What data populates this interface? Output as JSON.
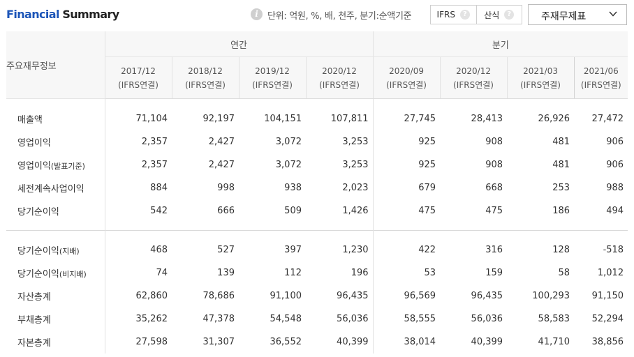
{
  "header": {
    "title_part1": "Financial",
    "title_part2": "Summary",
    "unit_text": "단위: 억원, %, 배, 천주, 분기:순액기준",
    "toggle": {
      "ifrs_label": "IFRS",
      "calc_label": "산식",
      "help_glyph": "?"
    },
    "select": {
      "label": "주재무제표"
    }
  },
  "table": {
    "corner_label": "주요재무정보",
    "groups": {
      "annual": "연간",
      "quarter": "분기"
    },
    "periods": [
      {
        "date": "2017/12",
        "basis": "(IFRS연결)"
      },
      {
        "date": "2018/12",
        "basis": "(IFRS연결)"
      },
      {
        "date": "2019/12",
        "basis": "(IFRS연결)"
      },
      {
        "date": "2020/12",
        "basis": "(IFRS연결)"
      },
      {
        "date": "2020/09",
        "basis": "(IFRS연결)"
      },
      {
        "date": "2020/12",
        "basis": "(IFRS연결)"
      },
      {
        "date": "2021/03",
        "basis": "(IFRS연결)"
      },
      {
        "date": "2021/06",
        "basis": "(IFRS연결)"
      }
    ],
    "rows": [
      {
        "label": "매출액",
        "values": [
          "71,104",
          "92,197",
          "104,151",
          "107,811",
          "27,745",
          "28,413",
          "26,926",
          "27,472"
        ]
      },
      {
        "label": "영업이익",
        "values": [
          "2,357",
          "2,427",
          "3,072",
          "3,253",
          "925",
          "908",
          "481",
          "906"
        ]
      },
      {
        "label": "영업이익",
        "label_suffix": "(발표기준)",
        "values": [
          "2,357",
          "2,427",
          "3,072",
          "3,253",
          "925",
          "908",
          "481",
          "906"
        ]
      },
      {
        "label": "세전계속사업이익",
        "values": [
          "884",
          "998",
          "938",
          "2,023",
          "679",
          "668",
          "253",
          "988"
        ]
      },
      {
        "label": "당기순이익",
        "values": [
          "542",
          "666",
          "509",
          "1,426",
          "475",
          "475",
          "186",
          "494"
        ]
      },
      {
        "label": "당기순이익",
        "label_suffix": "(지배)",
        "values": [
          "468",
          "527",
          "397",
          "1,230",
          "422",
          "316",
          "128",
          "-518"
        ]
      },
      {
        "label": "당기순이익",
        "label_suffix": "(비지배)",
        "values": [
          "74",
          "139",
          "112",
          "196",
          "53",
          "159",
          "58",
          "1,012"
        ]
      },
      {
        "label": "자산총계",
        "values": [
          "62,860",
          "78,686",
          "91,100",
          "96,435",
          "96,569",
          "96,435",
          "100,293",
          "91,150"
        ]
      },
      {
        "label": "부채총계",
        "values": [
          "35,262",
          "47,378",
          "54,548",
          "56,036",
          "58,555",
          "56,036",
          "58,583",
          "52,294"
        ]
      },
      {
        "label": "자본총계",
        "values": [
          "27,598",
          "31,307",
          "36,552",
          "40,399",
          "38,014",
          "40,399",
          "41,710",
          "38,856"
        ]
      }
    ]
  },
  "colors": {
    "title_blue": "#1c55b8",
    "negative_red": "#e02a2a"
  },
  "icons": [
    "info-icon",
    "help-icon",
    "chevron-down-icon"
  ]
}
